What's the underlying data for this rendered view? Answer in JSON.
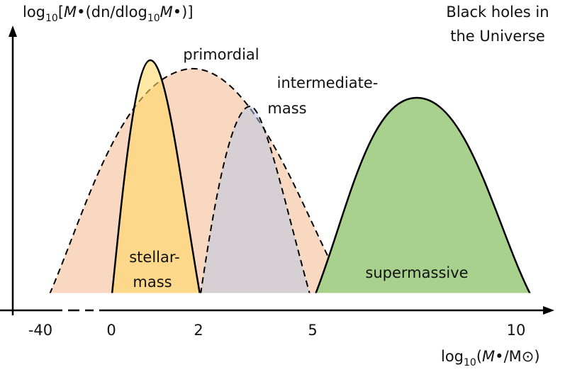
{
  "title": [
    "Black holes in",
    "the Universe"
  ],
  "y_label": [
    "log",
    "10",
    "[",
    "M",
    "•",
    "(dn/dlog",
    "10",
    "M",
    "•",
    ")]"
  ],
  "x_label": [
    "log",
    "10",
    "(",
    "M",
    "•",
    "/M",
    "⊙",
    ")"
  ],
  "x_ticks": [
    "-40",
    "0",
    "2",
    "5",
    "10"
  ],
  "regions": {
    "primordial": [
      "primordial"
    ],
    "intermediate": [
      "intermediate-",
      "mass"
    ],
    "stellar": [
      "stellar-",
      "mass"
    ],
    "supermassive": [
      "supermassive"
    ]
  }
}
